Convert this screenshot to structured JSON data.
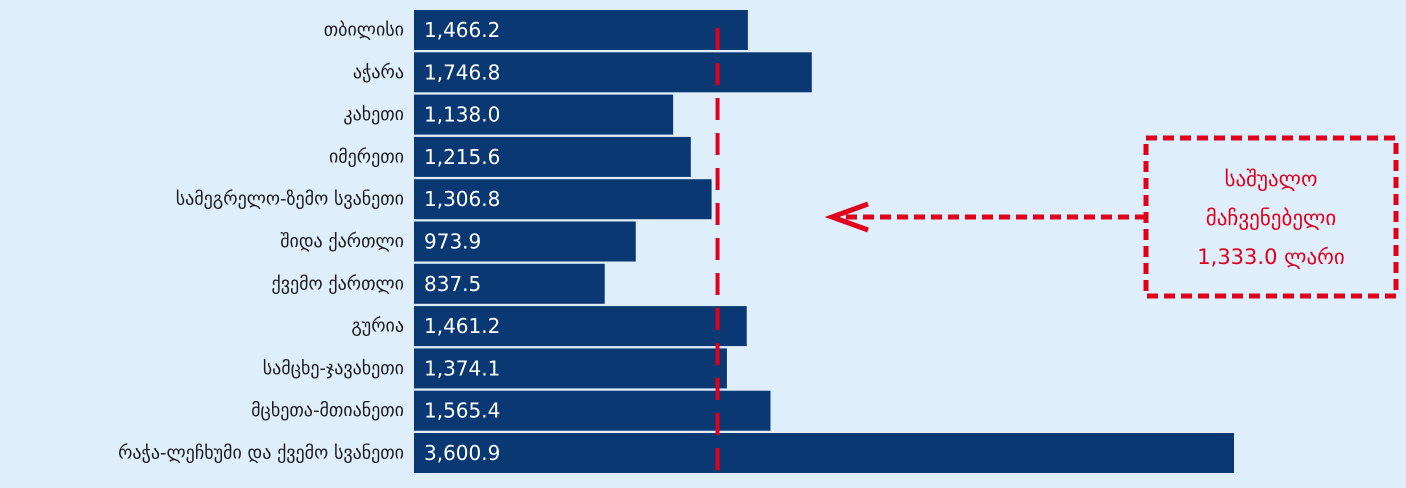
{
  "chart_data": {
    "type": "bar",
    "orientation": "horizontal",
    "categories": [
      "თბილისი",
      "აჭარა",
      "კახეთი",
      "იმერეთი",
      "სამეგრელო-ზემო სვანეთი",
      "შიდა ქართლი",
      "ქვემო ქართლი",
      "გურია",
      "სამცხე-ჯავახეთი",
      "მცხეთა-მთიანეთი",
      "რაჭა-ლეჩხუმი და ქვემო სვანეთი"
    ],
    "values": [
      1466.2,
      1746.8,
      1138.0,
      1215.6,
      1306.8,
      973.9,
      837.5,
      1461.2,
      1374.1,
      1565.4,
      3600.9
    ],
    "value_labels": [
      "1,466.2",
      "1,746.8",
      "1,138.0",
      "1,215.6",
      "1,306.8",
      "973.9",
      "837.5",
      "1,461.2",
      "1,374.1",
      "1,565.4",
      "3,600.9"
    ],
    "xlim": [
      0,
      3600.9
    ],
    "grid": false,
    "average_line": {
      "value": 1333.0,
      "annotation": [
        "საშუალო",
        "მაჩვენებელი",
        "1,333.0 ლარი"
      ]
    },
    "colors": {
      "bar": "#0a3873",
      "average": "#e0001b",
      "background": "#dfeefb"
    }
  }
}
